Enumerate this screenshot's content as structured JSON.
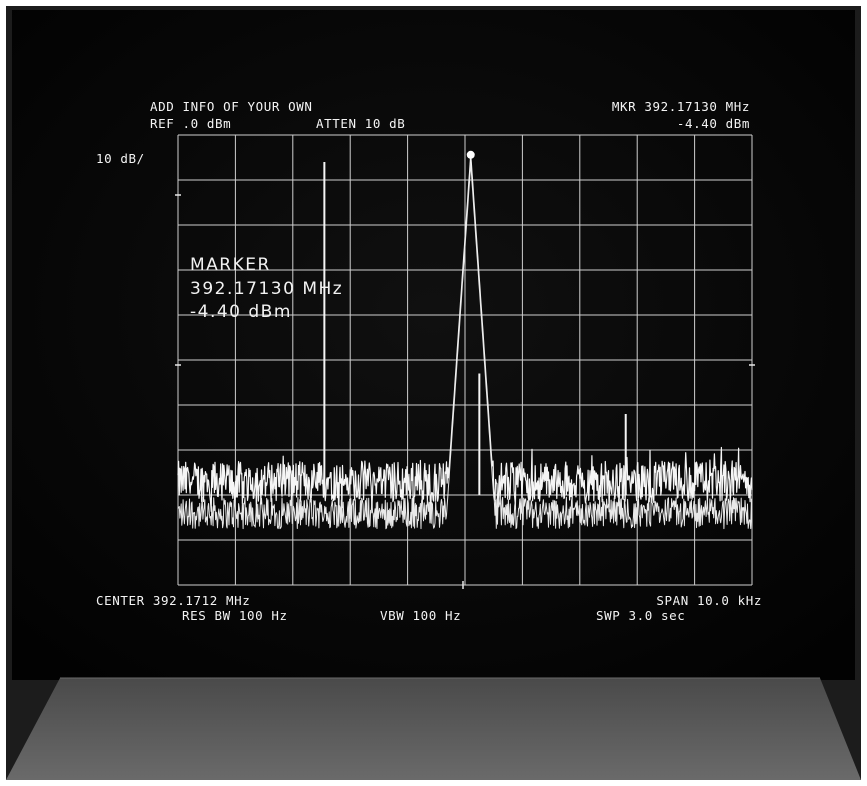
{
  "header": {
    "title": "ADD INFO OF YOUR OWN",
    "ref": "REF .0 dBm",
    "atten": "ATTEN 10 dB",
    "mkr_freq": "MKR 392.17130 MHz",
    "mkr_level": "-4.40 dBm"
  },
  "scale": "10 dB/",
  "marker_box": {
    "label": "MARKER",
    "freq": "392.17130 MHz",
    "level": "-4.40 dBm"
  },
  "footer": {
    "center": "CENTER 392.1712 MHz",
    "span": "SPAN 10.0 kHz",
    "res_bw": "RES BW 100 Hz",
    "vbw": "VBW 100 Hz",
    "swp": "SWP 3.0 sec"
  },
  "colors": {
    "screen": "#050505",
    "bezel": "#2b2b2b",
    "trace": "#f5f5f5",
    "graticule": "#cfcfcf",
    "frame": "#ffffff"
  },
  "chart_data": {
    "type": "line",
    "reference_level_dBm": 0,
    "scale_dB_per_div": 10,
    "center_freq_MHz": 392.1712,
    "span_kHz": 10.0,
    "ylim": [
      -100,
      0
    ],
    "xlim": [
      392.1662,
      392.1762
    ],
    "noise_floor_dBm": -77,
    "peak": {
      "freq_MHz": 392.1713,
      "level_dBm": -4.4
    },
    "spurs": [
      {
        "freq_MHz": 392.16875,
        "level_dBm": -6
      },
      {
        "freq_MHz": 392.17145,
        "level_dBm": -53
      },
      {
        "freq_MHz": 392.174,
        "level_dBm": -62
      }
    ],
    "grid": true
  }
}
